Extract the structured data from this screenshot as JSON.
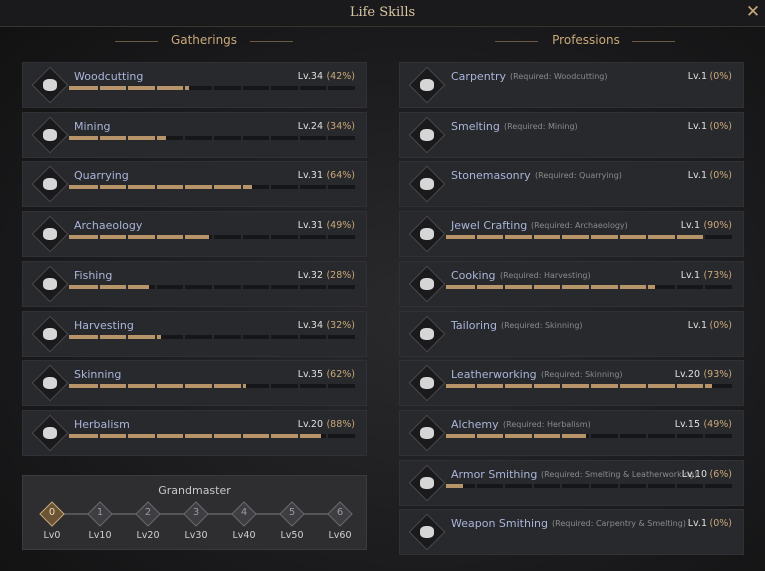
{
  "header": {
    "title": "Life Skills"
  },
  "gatherings": {
    "title": "Gatherings",
    "items": [
      {
        "name": "Woodcutting",
        "level": "Lv.34",
        "percent_label": "(42%)",
        "progress": 42
      },
      {
        "name": "Mining",
        "level": "Lv.24",
        "percent_label": "(34%)",
        "progress": 34
      },
      {
        "name": "Quarrying",
        "level": "Lv.31",
        "percent_label": "(64%)",
        "progress": 64
      },
      {
        "name": "Archaeology",
        "level": "Lv.31",
        "percent_label": "(49%)",
        "progress": 49
      },
      {
        "name": "Fishing",
        "level": "Lv.32",
        "percent_label": "(28%)",
        "progress": 28
      },
      {
        "name": "Harvesting",
        "level": "Lv.34",
        "percent_label": "(32%)",
        "progress": 32
      },
      {
        "name": "Skinning",
        "level": "Lv.35",
        "percent_label": "(62%)",
        "progress": 62
      },
      {
        "name": "Herbalism",
        "level": "Lv.20",
        "percent_label": "(88%)",
        "progress": 88
      }
    ]
  },
  "professions": {
    "title": "Professions",
    "items": [
      {
        "name": "Carpentry",
        "required": "(Required: Woodcutting)",
        "level": "Lv.1",
        "percent_label": "(0%)",
        "progress": 0
      },
      {
        "name": "Smelting",
        "required": "(Required: Mining)",
        "level": "Lv.1",
        "percent_label": "(0%)",
        "progress": 0
      },
      {
        "name": "Stonemasonry",
        "required": "(Required: Quarrying)",
        "level": "Lv.1",
        "percent_label": "(0%)",
        "progress": 0
      },
      {
        "name": "Jewel Crafting",
        "required": "(Required: Archaeology)",
        "level": "Lv.1",
        "percent_label": "(90%)",
        "progress": 90
      },
      {
        "name": "Cooking",
        "required": "(Required: Harvesting)",
        "level": "Lv.1",
        "percent_label": "(73%)",
        "progress": 73
      },
      {
        "name": "Tailoring",
        "required": "(Required: Skinning)",
        "level": "Lv.1",
        "percent_label": "(0%)",
        "progress": 0
      },
      {
        "name": "Leatherworking",
        "required": "(Required: Skinning)",
        "level": "Lv.20",
        "percent_label": "(93%)",
        "progress": 93
      },
      {
        "name": "Alchemy",
        "required": "(Required: Herbalism)",
        "level": "Lv.15",
        "percent_label": "(49%)",
        "progress": 49
      },
      {
        "name": "Armor Smithing",
        "required": "(Required: Smelting & Leatherworking)",
        "level": "Lv.10",
        "percent_label": "(6%)",
        "progress": 6
      },
      {
        "name": "Weapon Smithing",
        "required": "(Required: Carpentry & Smelting)",
        "level": "Lv.1",
        "percent_label": "(0%)",
        "progress": 0
      }
    ]
  },
  "grandmaster": {
    "title": "Grandmaster",
    "ranks": [
      {
        "badge": "0",
        "label": "Lv0"
      },
      {
        "badge": "1",
        "label": "Lv10"
      },
      {
        "badge": "2",
        "label": "Lv20"
      },
      {
        "badge": "3",
        "label": "Lv30"
      },
      {
        "badge": "4",
        "label": "Lv40"
      },
      {
        "badge": "5",
        "label": "Lv50"
      },
      {
        "badge": "6",
        "label": "Lv60"
      }
    ]
  }
}
